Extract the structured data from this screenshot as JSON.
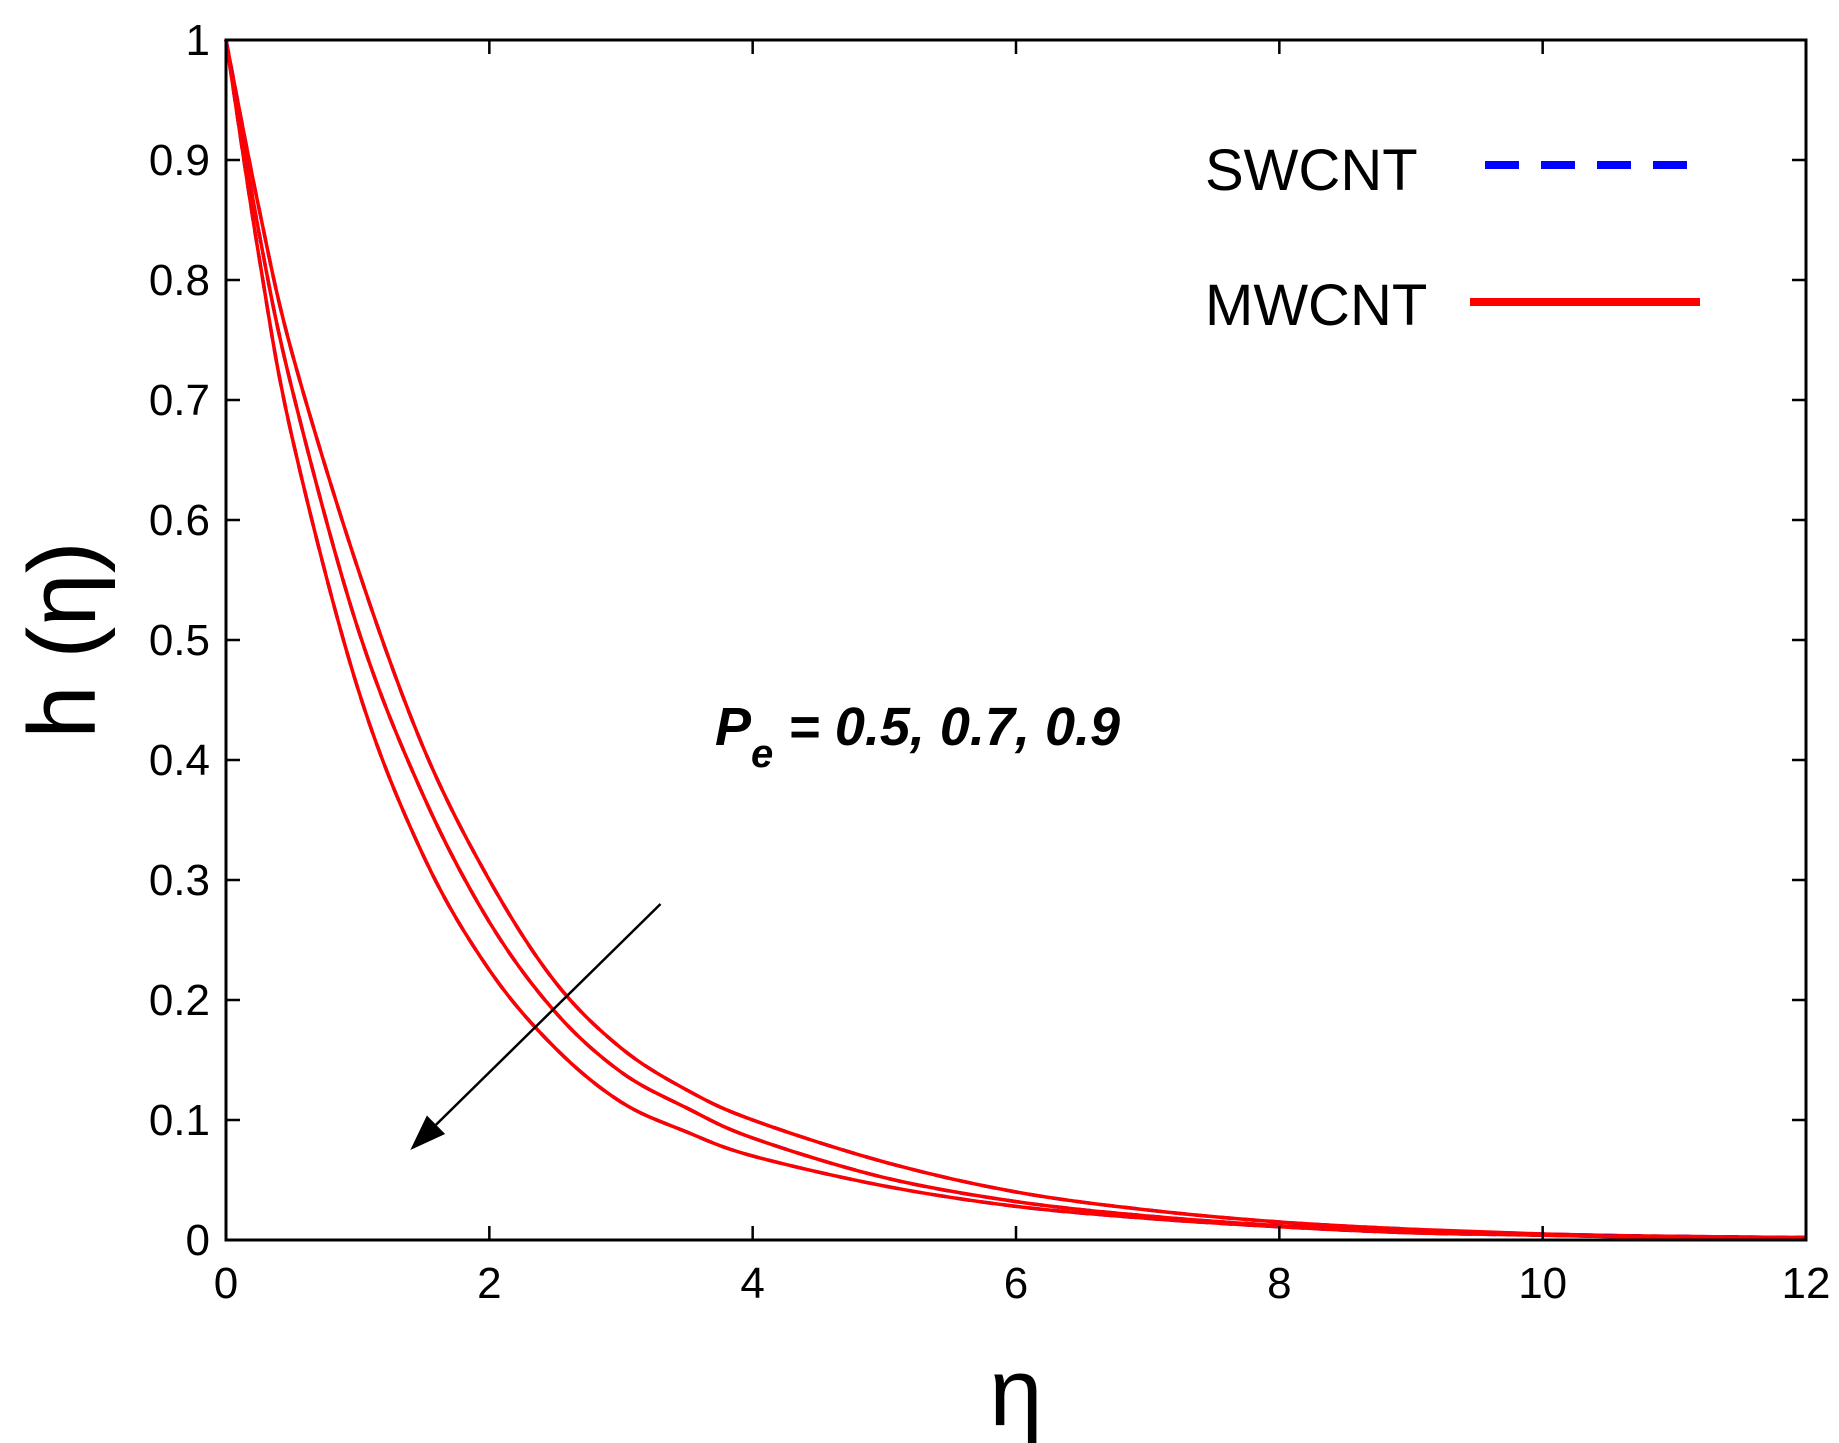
{
  "chart_data": {
    "type": "line",
    "xlabel": "η",
    "ylabel": "h (η)",
    "xlim": [
      0,
      12
    ],
    "ylim": [
      0,
      1
    ],
    "x_ticks": [
      "0",
      "2",
      "4",
      "6",
      "8",
      "10",
      "12"
    ],
    "y_ticks": [
      "0",
      "0.1",
      "0.2",
      "0.3",
      "0.4",
      "0.5",
      "0.6",
      "0.7",
      "0.8",
      "0.9",
      "1"
    ],
    "grid": false,
    "legend_position": "top-right",
    "legend": [
      {
        "label": "SWCNT",
        "color": "#0000ff",
        "style": "dashed"
      },
      {
        "label": "MWCNT",
        "color": "#ff0000",
        "style": "solid"
      }
    ],
    "annotation": {
      "symbol": "P",
      "subscript": "e",
      "text": " = 0.5, 0.7, 0.9",
      "arrow_from": [
        3.3,
        0.28
      ],
      "arrow_to": [
        1.4,
        0.075
      ]
    },
    "series": [
      {
        "name": "SWCNT, Pe = 0.5",
        "color": "#0000ff",
        "style": "dashed",
        "x": [
          0,
          0.25,
          0.5,
          1,
          1.5,
          2,
          2.5,
          3,
          3.5,
          4,
          5,
          6,
          7,
          8,
          9,
          10,
          11,
          12
        ],
        "y": [
          1,
          0.86,
          0.74,
          0.56,
          0.41,
          0.3,
          0.215,
          0.16,
          0.125,
          0.1,
          0.065,
          0.04,
          0.025,
          0.015,
          0.009,
          0.005,
          0.003,
          0.002
        ]
      },
      {
        "name": "MWCNT, Pe = 0.5",
        "color": "#ff0000",
        "style": "solid",
        "x": [
          0,
          0.25,
          0.5,
          1,
          1.5,
          2,
          2.5,
          3,
          3.5,
          4,
          5,
          6,
          7,
          8,
          9,
          10,
          11,
          12
        ],
        "y": [
          1,
          0.86,
          0.74,
          0.56,
          0.41,
          0.3,
          0.215,
          0.16,
          0.125,
          0.1,
          0.065,
          0.04,
          0.025,
          0.015,
          0.009,
          0.005,
          0.003,
          0.002
        ]
      },
      {
        "name": "SWCNT, Pe = 0.7",
        "color": "#0000ff",
        "style": "dashed",
        "x": [
          0,
          0.25,
          0.5,
          1,
          1.5,
          2,
          2.5,
          3,
          3.5,
          4,
          5,
          6,
          7,
          8,
          9,
          10,
          11,
          12
        ],
        "y": [
          1,
          0.84,
          0.71,
          0.51,
          0.37,
          0.265,
          0.19,
          0.14,
          0.11,
          0.085,
          0.052,
          0.032,
          0.02,
          0.012,
          0.007,
          0.004,
          0.003,
          0.002
        ]
      },
      {
        "name": "MWCNT, Pe = 0.7",
        "color": "#ff0000",
        "style": "solid",
        "x": [
          0,
          0.25,
          0.5,
          1,
          1.5,
          2,
          2.5,
          3,
          3.5,
          4,
          5,
          6,
          7,
          8,
          9,
          10,
          11,
          12
        ],
        "y": [
          1,
          0.84,
          0.71,
          0.51,
          0.37,
          0.265,
          0.19,
          0.14,
          0.11,
          0.085,
          0.052,
          0.032,
          0.02,
          0.012,
          0.007,
          0.004,
          0.003,
          0.002
        ]
      },
      {
        "name": "SWCNT, Pe = 0.9",
        "color": "#0000ff",
        "style": "dashed",
        "x": [
          0,
          0.25,
          0.5,
          1,
          1.5,
          2,
          2.5,
          3,
          3.5,
          4,
          5,
          6,
          7,
          8,
          9,
          10,
          11,
          12
        ],
        "y": [
          1,
          0.82,
          0.67,
          0.46,
          0.32,
          0.225,
          0.16,
          0.115,
          0.09,
          0.07,
          0.045,
          0.028,
          0.018,
          0.011,
          0.006,
          0.004,
          0.002,
          0.002
        ]
      },
      {
        "name": "MWCNT, Pe = 0.9",
        "color": "#ff0000",
        "style": "solid",
        "x": [
          0,
          0.25,
          0.5,
          1,
          1.5,
          2,
          2.5,
          3,
          3.5,
          4,
          5,
          6,
          7,
          8,
          9,
          10,
          11,
          12
        ],
        "y": [
          1,
          0.82,
          0.67,
          0.46,
          0.32,
          0.225,
          0.16,
          0.115,
          0.09,
          0.07,
          0.045,
          0.028,
          0.018,
          0.011,
          0.006,
          0.004,
          0.002,
          0.002
        ]
      }
    ]
  }
}
